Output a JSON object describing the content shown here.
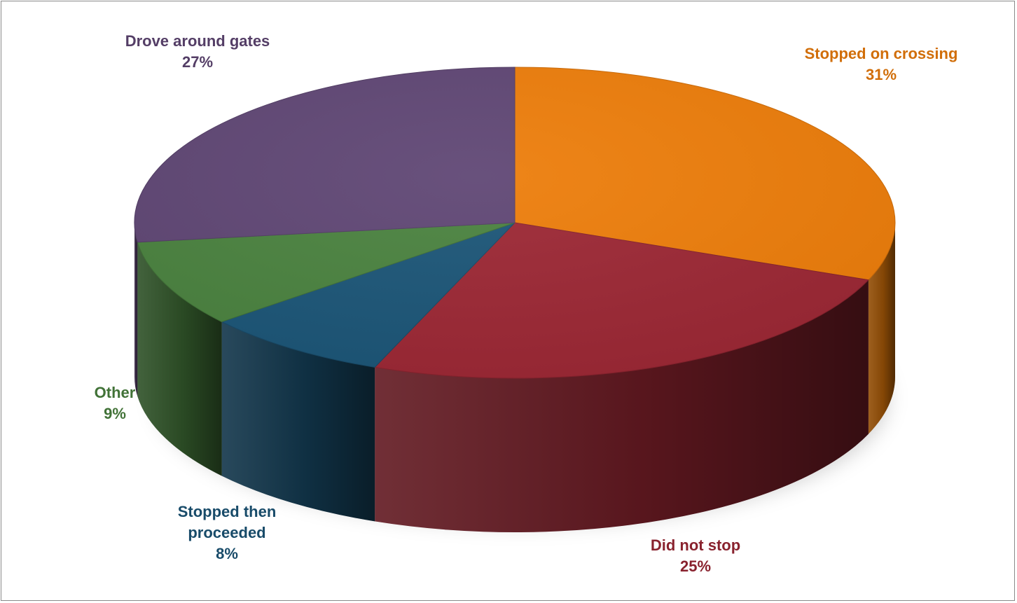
{
  "chart_data": {
    "type": "pie",
    "title": "",
    "categories": [
      "Stopped on crossing",
      "Did not stop",
      "Stopped then proceeded",
      "Other",
      "Drove around gates"
    ],
    "values": [
      31,
      25,
      8,
      9,
      27
    ],
    "percent_labels": [
      "31%",
      "25%",
      "8%",
      "9%",
      "27%"
    ],
    "colors": [
      "#ED7D0A",
      "#9C2734",
      "#1B5577",
      "#4A823F",
      "#5F4674"
    ],
    "style": "3d-tilted",
    "legend": "none",
    "data_labels": "outside, category and percent"
  }
}
